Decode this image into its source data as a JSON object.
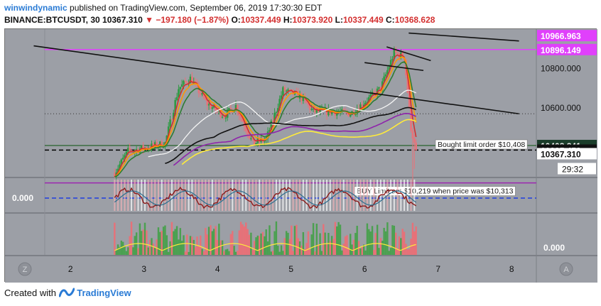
{
  "header": {
    "user": "winwindynamic",
    "published": "published on TradingView.com, September 06, 2019 17:30:30 EDT",
    "symbol": "BINANCE:BTCUSDT, 30",
    "last": "10367.310",
    "change": "−197.180 (−1.87%)",
    "o_label": "O:",
    "o": "10337.449",
    "h_label": "H:",
    "h": "10373.920",
    "l_label": "L:",
    "l": "10337.449",
    "c_label": "C:",
    "c": "10368.628"
  },
  "footer": {
    "created_with": "Created with",
    "brand": "TradingView"
  },
  "colors": {
    "panel": "#9c9fa6",
    "magenta": "#e040fb",
    "up": "#2e9a44",
    "down": "#e8737a",
    "ema_red": "#d32f2f",
    "ema_orange": "#ff9800",
    "ema_green": "#2e7d32",
    "ma_white": "#f5f5f5",
    "ma_yellow": "#ffeb3b",
    "ma_black": "#111111",
    "ma_purple": "#8e24aa",
    "label_white": "#ffffff",
    "label_green_dark": "#1b3d2a"
  },
  "chart_data": {
    "type": "candlestick",
    "symbol": "BINANCE:BTCUSDT",
    "interval": "30",
    "x_axis": {
      "ticks": [
        "2",
        "3",
        "4",
        "5",
        "6",
        "7",
        "8"
      ]
    },
    "y_axis": {
      "ticks": [
        "10800.000",
        "10600.000"
      ],
      "range": [
        10250,
        11000
      ]
    },
    "price_labels": [
      {
        "value": 10966.963,
        "text": "10966.963",
        "style": "magenta"
      },
      {
        "value": 10896.149,
        "text": "10896.149",
        "style": "magenta"
      },
      {
        "value": 10408.841,
        "text": "10408.841",
        "style": "green"
      },
      {
        "value": 10385.453,
        "text": "10385.453",
        "style": "dark"
      },
      {
        "value": 10367.31,
        "text": "10367.310",
        "style": "white"
      }
    ],
    "countdown": "29:32",
    "horizontal_lines": [
      {
        "value": 10896.149,
        "color": "magenta"
      },
      {
        "value": 10219,
        "color": "purple"
      },
      {
        "value": 10408.841,
        "color": "darkgreen"
      },
      {
        "value": 10385.453,
        "color": "black-dashed"
      },
      {
        "value": 10570,
        "color": "dotted"
      }
    ],
    "trendlines": [
      {
        "from": [
          "1.5",
          10915
        ],
        "to": [
          "8.1",
          10570
        ]
      },
      {
        "from": [
          "6.3",
          10910
        ],
        "to": [
          "6.9",
          10840
        ]
      },
      {
        "from": [
          "6.0",
          10830
        ],
        "to": [
          "6.8",
          10790
        ]
      },
      {
        "from": [
          "6.6",
          10980
        ],
        "to": [
          "8.1",
          10940
        ]
      }
    ],
    "annotations": [
      {
        "text": "Bought limit order $10,408",
        "value": 10408.841
      },
      {
        "text": "BUY Limit set $10,219 when price was $10,313",
        "value": 10219
      }
    ],
    "indicator_panes": [
      {
        "name": "oscillator",
        "value_label": "0.000"
      },
      {
        "name": "volume",
        "value_label": "0.000"
      }
    ]
  }
}
